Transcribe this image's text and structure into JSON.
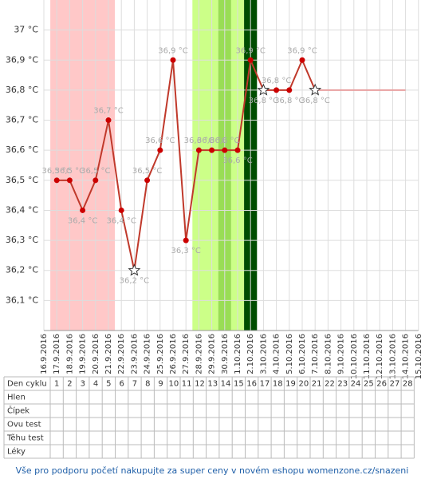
{
  "chart_data": {
    "type": "line",
    "categories": [
      "16.9.2016",
      "17.9.2016",
      "18.9.2016",
      "19.9.2016",
      "20.9.2016",
      "21.9.2016",
      "22.9.2016",
      "23.9.2016",
      "24.9.2016",
      "25.9.2016",
      "26.9.2016",
      "27.9.2016",
      "28.9.2016",
      "29.9.2016",
      "30.9.2016",
      "1.10.2016",
      "2.10.2016",
      "3.10.2016",
      "4.10.2016",
      "5.10.2016",
      "6.10.2016",
      "7.10.2016",
      "8.10.2016",
      "9.10.2016",
      "10.10.2016",
      "11.10.2016",
      "12.10.2016",
      "13.10.2016",
      "14.10.2016",
      "15.10.2016"
    ],
    "values": [
      null,
      36.5,
      36.5,
      36.4,
      36.5,
      36.7,
      36.4,
      36.2,
      36.5,
      36.6,
      36.9,
      36.3,
      36.6,
      36.6,
      36.6,
      36.6,
      36.9,
      36.8,
      36.8,
      36.8,
      36.9,
      36.8,
      null,
      null,
      null,
      null,
      null,
      null,
      null,
      null
    ],
    "value_labels": [
      null,
      "36,5 °C",
      "36,5 °C",
      "36,4 °C",
      "36,5 °C",
      "36,7 °C",
      "36,4 °C",
      "36,2 °C",
      "36,5 °C",
      "36,6 °C",
      "36,9 °C",
      "36,3 °C",
      "36,6 °C",
      "36,6 °C",
      "36,6 °C",
      "36,6 °C",
      "36,9 °C",
      "36,8 °C",
      "36,8 °C",
      "36,8 °C",
      "36,9 °C",
      "36,8 °C",
      null,
      null,
      null,
      null,
      null,
      null,
      null,
      null
    ],
    "extension": [
      null,
      null,
      null,
      null,
      null,
      null,
      null,
      null,
      null,
      null,
      null,
      null,
      null,
      null,
      null,
      null,
      null,
      null,
      null,
      null,
      null,
      36.8,
      36.8,
      36.8,
      36.8,
      36.8,
      36.8,
      36.8,
      36.8,
      null
    ],
    "star_points": [
      7,
      17,
      21
    ],
    "color": "#c0392b",
    "extension_color": "#e8a0a0",
    "highlights": [
      {
        "from": 1,
        "to": 5,
        "color": "#ffc8c8"
      },
      {
        "from": 12,
        "to": 13,
        "color": "#ccff88"
      },
      {
        "from": 14,
        "to": 14,
        "color": "#99dd55"
      },
      {
        "from": 15,
        "to": 15,
        "color": "#ccff88"
      },
      {
        "from": 16,
        "to": 16,
        "color": "#004d00"
      }
    ],
    "ylim": [
      36.0,
      37.1
    ],
    "yticks": [
      {
        "value": 36.1,
        "label": "36,1 °C"
      },
      {
        "value": 36.2,
        "label": "36,2 °C"
      },
      {
        "value": 36.3,
        "label": "36,3 °C"
      },
      {
        "value": 36.4,
        "label": "36,4 °C"
      },
      {
        "value": 36.5,
        "label": "36,5 °C"
      },
      {
        "value": 36.6,
        "label": "36,6 °C"
      },
      {
        "value": 36.7,
        "label": "36,7 °C"
      },
      {
        "value": 36.8,
        "label": "36,8 °C"
      },
      {
        "value": 36.9,
        "label": "36,9 °C"
      },
      {
        "value": 37,
        "label": "37 °C"
      }
    ],
    "grid": true
  },
  "cycle_table": {
    "header": "Den cyklu",
    "days": [
      1,
      2,
      3,
      4,
      5,
      6,
      7,
      8,
      9,
      10,
      11,
      12,
      13,
      14,
      15,
      16,
      17,
      18,
      19,
      20,
      21,
      22,
      23,
      24,
      25,
      26,
      27,
      28
    ],
    "rows": [
      "Hlen",
      "Čípek",
      "Ovu test",
      "Těhu test",
      "Léky"
    ]
  },
  "footer": "Vše pro podporu početí nakupujte za super ceny v novém eshopu womenzone.cz/snazeni"
}
